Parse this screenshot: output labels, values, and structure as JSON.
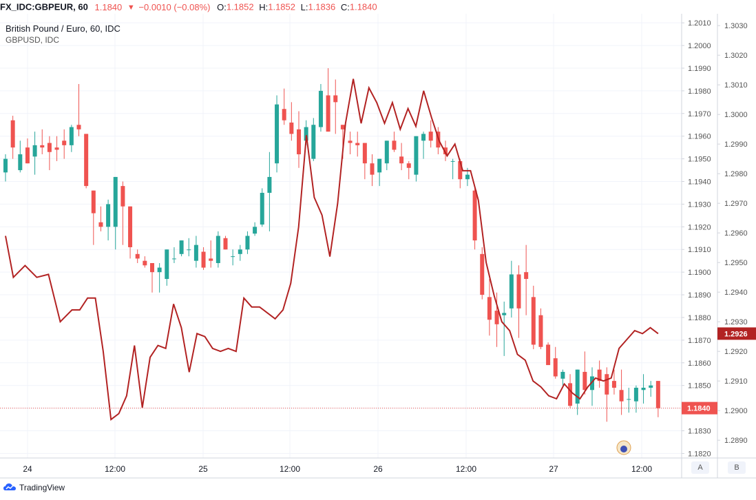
{
  "header": {
    "symbol": "FX_IDC:GBPEUR, 60",
    "last": "1.1840",
    "arrow": "▼",
    "change": "−0.0010 (−0.08%)",
    "o_label": "O:",
    "o_val": "1.1852",
    "h_label": "H:",
    "h_val": "1.1852",
    "l_label": "L:",
    "l_val": "1.1836",
    "c_label": "C:",
    "c_val": "1.1840"
  },
  "legend": {
    "main": "British Pound / Euro, 60, IDC",
    "compare": "GBPUSD, IDC"
  },
  "footer": {
    "brand": "TradingView",
    "scale_a": "A",
    "scale_b": "B"
  },
  "chart_data": {
    "type": "candlestick",
    "x_ticks": [
      "24",
      "12:00",
      "25",
      "12:00",
      "26",
      "12:00",
      "27",
      "12:00"
    ],
    "left_axis_ticks": [
      "1.2010",
      "1.2000",
      "1.1990",
      "1.1980",
      "1.1970",
      "1.1960",
      "1.1950",
      "1.1940",
      "1.1930",
      "1.1920",
      "1.1910",
      "1.1900",
      "1.1890",
      "1.1880",
      "1.1870",
      "1.1860",
      "1.1850",
      "1.1840",
      "1.1830",
      "1.1820"
    ],
    "right_axis_ticks": [
      "1.3030",
      "1.3020",
      "1.3010",
      "1.3000",
      "1.2990",
      "1.2980",
      "1.2970",
      "1.2960",
      "1.2950",
      "1.2940",
      "1.2930",
      "1.2920",
      "1.2910",
      "1.2900",
      "1.2890"
    ],
    "gbpeur_range": [
      1.1818,
      1.2014
    ],
    "gbpusd_range": [
      1.2884,
      1.3034
    ],
    "last_price_label": "1.1840",
    "compare_last_label": "1.2926",
    "colors": {
      "up": "#26a69a",
      "down": "#ef5350",
      "compare": "#b22222",
      "price_line": "#ef5350"
    },
    "series": [
      {
        "name": "GBPEUR",
        "candles": [
          [
            1.1944,
            1.1952,
            1.194,
            1.195
          ],
          [
            1.1967,
            1.1969,
            1.195,
            1.1955
          ],
          [
            1.1945,
            1.1958,
            1.1944,
            1.1952
          ],
          [
            1.1955,
            1.1959,
            1.1948,
            1.1948
          ],
          [
            1.1951,
            1.1962,
            1.1943,
            1.1956
          ],
          [
            1.1956,
            1.1963,
            1.1952,
            1.1955
          ],
          [
            1.1957,
            1.196,
            1.1945,
            1.1953
          ],
          [
            1.1955,
            1.196,
            1.1949,
            1.1954
          ],
          [
            1.1958,
            1.1963,
            1.195,
            1.1956
          ],
          [
            1.1956,
            1.1965,
            1.1953,
            1.1964
          ],
          [
            1.1965,
            1.1983,
            1.196,
            1.1963
          ],
          [
            1.1961,
            1.1961,
            1.1937,
            1.1938
          ],
          [
            1.1936,
            1.1936,
            1.1912,
            1.1926
          ],
          [
            1.1922,
            1.1929,
            1.1918,
            1.192
          ],
          [
            1.192,
            1.1932,
            1.1914,
            1.193
          ],
          [
            1.192,
            1.1942,
            1.191,
            1.1942
          ],
          [
            1.1938,
            1.194,
            1.1912,
            1.1929
          ],
          [
            1.1929,
            1.1929,
            1.1906,
            1.1911
          ],
          [
            1.1908,
            1.191,
            1.1904,
            1.1906
          ],
          [
            1.1905,
            1.1907,
            1.1902,
            1.1903
          ],
          [
            1.1904,
            1.1904,
            1.1891,
            1.19
          ],
          [
            1.19,
            1.1904,
            1.1891,
            1.1902
          ],
          [
            1.1897,
            1.191,
            1.1894,
            1.191
          ],
          [
            1.1906,
            1.1911,
            1.1904,
            1.1906
          ],
          [
            1.1908,
            1.1914,
            1.1907,
            1.1914
          ],
          [
            1.191,
            1.1915,
            1.1907,
            1.191
          ],
          [
            1.1905,
            1.1916,
            1.1902,
            1.1912
          ],
          [
            1.1909,
            1.1911,
            1.1901,
            1.1902
          ],
          [
            1.1906,
            1.1914,
            1.1902,
            1.1905
          ],
          [
            1.1904,
            1.1918,
            1.1902,
            1.1916
          ],
          [
            1.1915,
            1.1916,
            1.191,
            1.191
          ],
          [
            1.1907,
            1.191,
            1.1903,
            1.1907
          ],
          [
            1.1908,
            1.1912,
            1.1905,
            1.191
          ],
          [
            1.191,
            1.1918,
            1.1908,
            1.1916
          ],
          [
            1.1917,
            1.1922,
            1.1916,
            1.192
          ],
          [
            1.1921,
            1.1937,
            1.192,
            1.1935
          ],
          [
            1.1935,
            1.1953,
            1.1918,
            1.1942
          ],
          [
            1.1948,
            1.1978,
            1.1944,
            1.1974
          ],
          [
            1.1972,
            1.1981,
            1.1965,
            1.1967
          ],
          [
            1.1966,
            1.1975,
            1.1958,
            1.1961
          ],
          [
            1.1963,
            1.1971,
            1.1946,
            1.1952
          ],
          [
            1.1958,
            1.1967,
            1.1956,
            1.1964
          ],
          [
            1.195,
            1.1968,
            1.1949,
            1.1965
          ],
          [
            1.1964,
            1.1983,
            1.1962,
            1.198
          ],
          [
            1.1978,
            1.199,
            1.1962,
            1.1962
          ],
          [
            1.1978,
            1.1985,
            1.1961,
            1.1975
          ],
          [
            1.1965,
            1.1965,
            1.195,
            1.1963
          ],
          [
            1.1958,
            1.1962,
            1.1952,
            1.1957
          ],
          [
            1.1957,
            1.1962,
            1.1951,
            1.1956
          ],
          [
            1.1957,
            1.1957,
            1.1941,
            1.1948
          ],
          [
            1.1948,
            1.1952,
            1.1938,
            1.1943
          ],
          [
            1.1944,
            1.195,
            1.1938,
            1.195
          ],
          [
            1.1948,
            1.1958,
            1.1945,
            1.1958
          ],
          [
            1.1958,
            1.1962,
            1.1953,
            1.1954
          ],
          [
            1.1951,
            1.1957,
            1.1945,
            1.1948
          ],
          [
            1.1948,
            1.1949,
            1.1941,
            1.1946
          ],
          [
            1.1943,
            1.196,
            1.194,
            1.196
          ],
          [
            1.1958,
            1.1962,
            1.195,
            1.1961
          ],
          [
            1.1962,
            1.1967,
            1.1955,
            1.1958
          ],
          [
            1.1962,
            1.1964,
            1.1952,
            1.1955
          ],
          [
            1.1955,
            1.1958,
            1.1949,
            1.1952
          ],
          [
            1.1949,
            1.195,
            1.1941,
            1.1949
          ],
          [
            1.1949,
            1.195,
            1.1937,
            1.1941
          ],
          [
            1.1941,
            1.1946,
            1.1938,
            1.1943
          ],
          [
            1.1936,
            1.1937,
            1.191,
            1.1914
          ],
          [
            1.1908,
            1.1911,
            1.1888,
            1.189
          ],
          [
            1.1889,
            1.1897,
            1.1872,
            1.1879
          ],
          [
            1.1883,
            1.1891,
            1.1867,
            1.1877
          ],
          [
            1.1881,
            1.1887,
            1.1863,
            1.1882
          ],
          [
            1.1884,
            1.1905,
            1.188,
            1.1899
          ],
          [
            1.1899,
            1.1903,
            1.1871,
            1.1884
          ],
          [
            1.19,
            1.1912,
            1.1881,
            1.1897
          ],
          [
            1.1889,
            1.1894,
            1.1866,
            1.1868
          ],
          [
            1.1881,
            1.1884,
            1.1866,
            1.1867
          ],
          [
            1.1868,
            1.1869,
            1.1859,
            1.1859
          ],
          [
            1.1862,
            1.1867,
            1.1853,
            1.1854
          ],
          [
            1.1853,
            1.1857,
            1.185,
            1.1856
          ],
          [
            1.1851,
            1.1855,
            1.184,
            1.1841
          ],
          [
            1.1842,
            1.1857,
            1.1837,
            1.1857
          ],
          [
            1.1856,
            1.1865,
            1.1846,
            1.1848
          ],
          [
            1.1848,
            1.1858,
            1.1841,
            1.1854
          ],
          [
            1.1857,
            1.1861,
            1.1849,
            1.1852
          ],
          [
            1.1855,
            1.1858,
            1.1834,
            1.1846
          ],
          [
            1.1852,
            1.1857,
            1.1846,
            1.1849
          ],
          [
            1.1848,
            1.1857,
            1.1837,
            1.1843
          ],
          [
            1.1844,
            1.1849,
            1.1838,
            1.1844
          ],
          [
            1.1843,
            1.185,
            1.1838,
            1.1849
          ],
          [
            1.1848,
            1.1855,
            1.1842,
            1.1849
          ],
          [
            1.1849,
            1.1852,
            1.1845,
            1.185
          ],
          [
            1.1852,
            1.1852,
            1.1836,
            1.184
          ]
        ]
      },
      {
        "name": "GBPUSD",
        "line_points": [
          [
            0,
            1.2959
          ],
          [
            2,
            1.2945
          ],
          [
            5,
            1.2949
          ],
          [
            8,
            1.2945
          ],
          [
            11,
            1.2946
          ],
          [
            14,
            1.293
          ],
          [
            17,
            1.2934
          ],
          [
            19,
            1.2934
          ],
          [
            21,
            1.2938
          ],
          [
            23,
            1.2938
          ],
          [
            25,
            1.292
          ],
          [
            27,
            1.2897
          ],
          [
            29,
            1.2899
          ],
          [
            31,
            1.2905
          ],
          [
            33,
            1.2922
          ],
          [
            35,
            1.2901
          ],
          [
            37,
            1.2918
          ],
          [
            39,
            1.2922
          ],
          [
            41,
            1.2921
          ],
          [
            43,
            1.2936
          ],
          [
            45,
            1.2928
          ],
          [
            47,
            1.2913
          ],
          [
            49,
            1.2926
          ],
          [
            51,
            1.2925
          ],
          [
            53,
            1.2921
          ],
          [
            55,
            1.292
          ],
          [
            57,
            1.2921
          ],
          [
            59,
            1.292
          ],
          [
            61,
            1.2938
          ],
          [
            63,
            1.2935
          ],
          [
            65,
            1.2935
          ],
          [
            67,
            1.2933
          ],
          [
            69,
            1.2931
          ],
          [
            71,
            1.2934
          ],
          [
            73,
            1.2943
          ],
          [
            75,
            1.2962
          ],
          [
            77,
            1.2993
          ],
          [
            79,
            1.2972
          ],
          [
            81,
            1.2966
          ],
          [
            83,
            1.2952
          ],
          [
            85,
            1.297
          ],
          [
            87,
            1.2997
          ],
          [
            89,
            1.3012
          ],
          [
            91,
            1.2997
          ],
          [
            93,
            1.3009
          ],
          [
            95,
            1.3004
          ],
          [
            97,
            1.2997
          ],
          [
            99,
            1.3004
          ],
          [
            101,
            1.2995
          ],
          [
            103,
            1.3002
          ],
          [
            105,
            1.2996
          ],
          [
            107,
            1.3008
          ],
          [
            109,
            1.2999
          ],
          [
            111,
            1.2991
          ],
          [
            113,
            1.2986
          ],
          [
            115,
            1.299
          ],
          [
            117,
            1.2981
          ],
          [
            119,
            1.2981
          ],
          [
            121,
            1.2971
          ],
          [
            123,
            1.295
          ],
          [
            125,
            1.2939
          ],
          [
            127,
            1.293
          ],
          [
            129,
            1.2927
          ],
          [
            131,
            1.2919
          ],
          [
            133,
            1.2917
          ],
          [
            135,
            1.291
          ],
          [
            137,
            1.2908
          ],
          [
            139,
            1.2905
          ],
          [
            141,
            1.2904
          ],
          [
            143,
            1.2909
          ],
          [
            145,
            1.2906
          ],
          [
            147,
            1.2904
          ],
          [
            149,
            1.2908
          ],
          [
            151,
            1.2911
          ],
          [
            153,
            1.291
          ],
          [
            155,
            1.2911
          ],
          [
            157,
            1.2921
          ],
          [
            159,
            1.2924
          ],
          [
            161,
            1.2927
          ],
          [
            163,
            1.2926
          ],
          [
            165,
            1.2928
          ],
          [
            167,
            1.2926
          ]
        ]
      }
    ]
  }
}
